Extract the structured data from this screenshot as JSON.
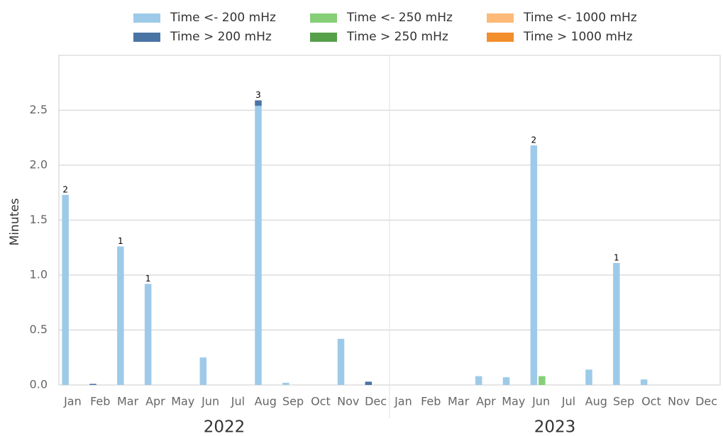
{
  "chart_data": {
    "type": "grouped-stacked-bar",
    "y_label": "Minutes",
    "categories": [
      "Jan",
      "Feb",
      "Mar",
      "Apr",
      "May",
      "Jun",
      "Jul",
      "Aug",
      "Sep",
      "Oct",
      "Nov",
      "Dec",
      "Jan",
      "Feb",
      "Mar",
      "Apr",
      "May",
      "Jun",
      "Jul",
      "Aug",
      "Sep",
      "Oct",
      "Nov",
      "Dec"
    ],
    "groups": [
      "2022",
      "2023"
    ],
    "series": [
      {
        "name": "Time <- 200 mHz",
        "color": "#9ecae9",
        "values": [
          1.73,
          0,
          1.26,
          0.92,
          0,
          0.25,
          0,
          2.54,
          0.02,
          0,
          0.42,
          0,
          0,
          0,
          0,
          0.08,
          0.07,
          2.18,
          0,
          0.14,
          1.11,
          0.05,
          0,
          0
        ]
      },
      {
        "name": "Time > 200 mHz",
        "color": "#4a74a4",
        "values": [
          0,
          0.01,
          0,
          0,
          0,
          0,
          0,
          0.05,
          0,
          0,
          0,
          0.03,
          0,
          0,
          0,
          0,
          0,
          0,
          0,
          0,
          0,
          0,
          0,
          0
        ]
      },
      {
        "name": "Time <- 250 mHz",
        "color": "#86cf78",
        "values": [
          0,
          0,
          0,
          0,
          0,
          0,
          0,
          0,
          0,
          0,
          0,
          0,
          0,
          0,
          0,
          0,
          0,
          0.08,
          0,
          0,
          0,
          0,
          0,
          0
        ]
      },
      {
        "name": "Time > 250 mHz",
        "color": "#56a04a",
        "values": [
          0,
          0,
          0,
          0,
          0,
          0,
          0,
          0,
          0,
          0,
          0,
          0,
          0,
          0,
          0,
          0,
          0,
          0,
          0,
          0,
          0,
          0,
          0,
          0
        ]
      },
      {
        "name": "Time <- 1000 mHz",
        "color": "#fdba78",
        "values": [
          0,
          0,
          0,
          0,
          0,
          0,
          0,
          0,
          0,
          0,
          0,
          0,
          0,
          0,
          0,
          0,
          0,
          0,
          0,
          0,
          0,
          0,
          0,
          0
        ]
      },
      {
        "name": "Time > 1000 mHz",
        "color": "#f28e2c",
        "values": [
          0,
          0,
          0,
          0,
          0,
          0,
          0,
          0,
          0,
          0,
          0,
          0,
          0,
          0,
          0,
          0,
          0,
          0,
          0,
          0,
          0,
          0,
          0,
          0
        ]
      }
    ],
    "count_labels": [
      2,
      null,
      1,
      1,
      null,
      null,
      null,
      3,
      null,
      null,
      null,
      null,
      null,
      null,
      null,
      null,
      null,
      2,
      null,
      null,
      1,
      null,
      null,
      null
    ],
    "ylim": [
      0,
      3
    ],
    "yticks": [
      {
        "value": 0,
        "label": "0.0"
      },
      0.5,
      {
        "value": 1,
        "label": "1.0"
      },
      1.5,
      {
        "value": 2,
        "label": "2.0"
      },
      2.5
    ],
    "grid": true
  }
}
